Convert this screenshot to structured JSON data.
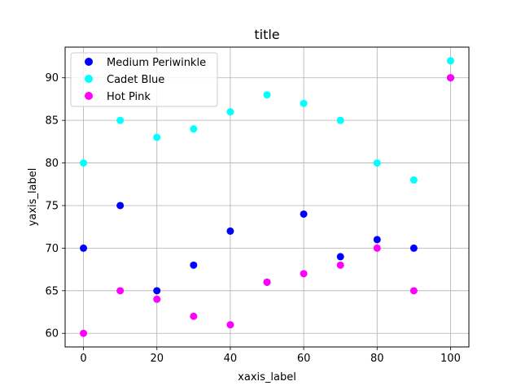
{
  "chart_data": {
    "type": "scatter",
    "title": "title",
    "xlabel": "xaxis_label",
    "ylabel": "yaxis_label",
    "xlim": [
      -5,
      105
    ],
    "ylim": [
      58.4,
      93.6
    ],
    "xticks": [
      0,
      20,
      40,
      60,
      80,
      100
    ],
    "yticks": [
      60,
      65,
      70,
      75,
      80,
      85,
      90
    ],
    "grid": true,
    "legend_position": "top-left",
    "x": [
      0,
      10,
      20,
      30,
      40,
      50,
      60,
      70,
      80,
      90,
      100
    ],
    "series": [
      {
        "name": "Medium Periwinkle",
        "color": "#0000ff",
        "values": [
          70,
          75,
          65,
          68,
          72,
          66,
          74,
          69,
          71,
          70,
          90
        ]
      },
      {
        "name": "Cadet Blue",
        "color": "#00ffff",
        "values": [
          80,
          85,
          83,
          84,
          86,
          88,
          87,
          85,
          80,
          78,
          92
        ]
      },
      {
        "name": "Hot Pink",
        "color": "#ff00ff",
        "values": [
          60,
          65,
          64,
          62,
          61,
          66,
          67,
          68,
          70,
          65,
          90
        ]
      }
    ]
  }
}
